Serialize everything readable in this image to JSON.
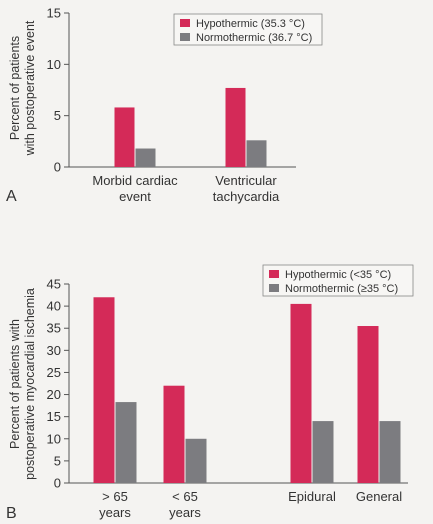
{
  "colors": {
    "hypothermic": "#d42a58",
    "normothermic": "#7c7c80"
  },
  "chart_data": [
    {
      "type": "bar",
      "panel": "A",
      "categories": [
        [
          "Morbid cardiac",
          "event"
        ],
        [
          "Ventricular",
          "tachycardia"
        ]
      ],
      "series": [
        {
          "name": "Hypothermic (35.3 °C)",
          "values": [
            5.8,
            7.7
          ]
        },
        {
          "name": "Normothermic (36.7 °C)",
          "values": [
            1.8,
            2.6
          ]
        }
      ],
      "ylabel": [
        "Percent of patients",
        "with postoperative event"
      ],
      "ylim": [
        0,
        15
      ],
      "yticks": [
        0,
        5,
        10,
        15
      ],
      "legend": "top-right",
      "grid": false
    },
    {
      "type": "bar",
      "panel": "B",
      "categories": [
        [
          "> 65",
          "years"
        ],
        [
          "< 65",
          "years"
        ],
        [
          "Epidural",
          ""
        ],
        [
          "General",
          ""
        ]
      ],
      "series": [
        {
          "name": "Hypothermic (<35 °C)",
          "values": [
            42,
            22,
            40.5,
            35.5
          ]
        },
        {
          "name": "Normothermic (≥35 °C)",
          "values": [
            18.3,
            10,
            14,
            14
          ]
        }
      ],
      "ylabel": [
        "Percent of patients with",
        "postoperative myocardial ischemia"
      ],
      "ylim": [
        0,
        45
      ],
      "yticks": [
        0,
        5,
        10,
        15,
        20,
        25,
        30,
        35,
        40,
        45
      ],
      "legend": "top-right",
      "grid": false
    }
  ]
}
